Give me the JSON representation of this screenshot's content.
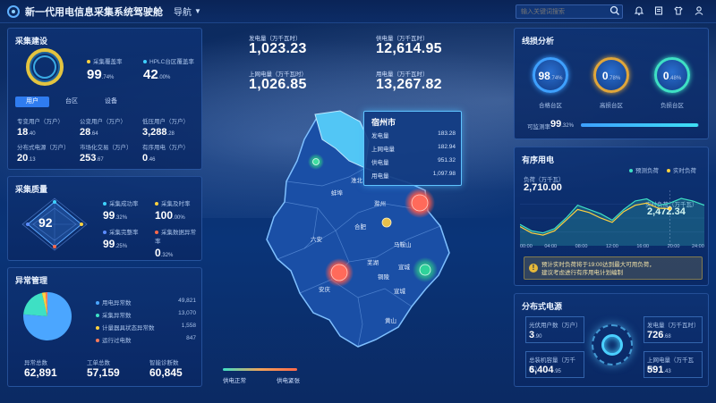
{
  "app": {
    "title": "新一代用电信息采集系统驾驶舱",
    "nav_label": "导航"
  },
  "search": {
    "placeholder": "输入关键词搜索"
  },
  "icons": [
    "search-icon",
    "bell-icon",
    "book-icon",
    "shirt-icon",
    "user-icon"
  ],
  "collection": {
    "title": "采集建设",
    "rate1_label": "采集覆盖率",
    "rate1_value": "99",
    "rate1_unit": ".74%",
    "rate2_label": "HPLC台区覆盖率",
    "rate2_value": "42",
    "rate2_unit": ".00%",
    "tabs": [
      "用户",
      "台区",
      "设备"
    ],
    "stats": [
      {
        "label": "专变用户（万户）",
        "value": "18",
        "unit": ".40"
      },
      {
        "label": "公变用户（万户）",
        "value": "28",
        "unit": ".64"
      },
      {
        "label": "低压用户（万户）",
        "value": "3,288",
        "unit": ".28"
      },
      {
        "label": "分布式电源（万户）",
        "value": "20",
        "unit": ".13"
      },
      {
        "label": "市场化交易（万户）",
        "value": "253",
        "unit": ".67"
      },
      {
        "label": "有序用电（万户）",
        "value": "0",
        "unit": ".46"
      }
    ]
  },
  "quality": {
    "title": "采集质量",
    "score": "92",
    "items": [
      {
        "label": "采集成功率",
        "value": "99",
        "unit": ".32%",
        "color": "#3fd2ff"
      },
      {
        "label": "采集及时率",
        "value": "100",
        "unit": ".00%",
        "color": "#ffd23f"
      },
      {
        "label": "采集完整率",
        "value": "99",
        "unit": ".25%",
        "color": "#5b8cff"
      },
      {
        "label": "采集数据异常率",
        "value": "0",
        "unit": ".32%",
        "color": "#ff6a4a"
      }
    ]
  },
  "anomaly": {
    "title": "异常管理",
    "legend": [
      {
        "label": "用电异常数",
        "value": "49,821",
        "color": "#4ba6ff"
      },
      {
        "label": "采集异常数",
        "value": "13,070",
        "color": "#3ee0c4"
      },
      {
        "label": "计量器具状态异常数",
        "value": "1,558",
        "color": "#ffd23f"
      },
      {
        "label": "运行过电数",
        "value": "847",
        "color": "#ff7a5a"
      }
    ],
    "pie_values": [
      49821,
      13070,
      1558,
      847
    ],
    "totals": [
      {
        "label": "异常总数",
        "value": "62,891"
      },
      {
        "label": "工单总数",
        "value": "57,159"
      },
      {
        "label": "智能诊断数",
        "value": "60,845"
      }
    ]
  },
  "center": {
    "metrics": [
      {
        "label": "发电量（万千瓦时）",
        "value": "1,023.23"
      },
      {
        "label": "供电量（万千瓦时）",
        "value": "12,614.95"
      },
      {
        "label": "上网电量（万千瓦时）",
        "value": "1,026.85"
      },
      {
        "label": "用电量（万千瓦时）",
        "value": "13,267.82"
      }
    ],
    "tooltip": {
      "city": "宿州市",
      "rows": [
        {
          "label": "发电量",
          "value": "183.28"
        },
        {
          "label": "上网电量",
          "value": "182.94"
        },
        {
          "label": "供电量",
          "value": "951.32"
        },
        {
          "label": "用电量",
          "value": "1,097.98"
        }
      ]
    },
    "cities": [
      "淮北",
      "蚌埠",
      "滁州",
      "合肥",
      "六安",
      "马鞍山",
      "芜湖",
      "宣城",
      "铜陵",
      "安庆",
      "黄山",
      "宿州"
    ],
    "legend_left": "供电正常",
    "legend_right": "供电紧张"
  },
  "line_loss": {
    "title": "线损分析",
    "gauges": [
      {
        "label": "合格台区",
        "value": "98",
        "unit": ".74%",
        "color": "#3ea0ff"
      },
      {
        "label": "高损台区",
        "value": "0",
        "unit": ".78%",
        "color": "#e0a63a"
      },
      {
        "label": "负损台区",
        "value": "0",
        "unit": ".48%",
        "color": "#3ee0c4"
      }
    ],
    "calc_label": "可监测率",
    "calc_value": "99",
    "calc_unit": ".32%",
    "calc_fraction": 0.9932
  },
  "ordered": {
    "title": "有序用电",
    "legend": [
      {
        "label": "预测负荷",
        "color": "#3ee0c4"
      },
      {
        "label": "实时负荷",
        "color": "#ffd23f"
      }
    ],
    "load_label": "负荷（万千瓦）",
    "load_value": "2,710.00",
    "real_label": "实时负荷（万千瓦）",
    "real_value": "2,472.34",
    "x_ticks": [
      "00:00",
      "04:00",
      "08:00",
      "12:00",
      "16:00",
      "20:00",
      "24:00"
    ],
    "predicted": [
      2100,
      1950,
      1900,
      2000,
      2250,
      2550,
      2450,
      2350,
      2200,
      2450,
      2650,
      2700,
      2550,
      2600,
      2710,
      2650,
      2550
    ],
    "realtime": [
      2050,
      1900,
      1850,
      1950,
      2200,
      2450,
      2380,
      2250,
      2150,
      2400,
      2550,
      2600,
      2480,
      2472
    ],
    "ylim": [
      1600,
      2900
    ],
    "alert": "预计实时负荷将于19:00达到最大可用负荷，建议考虑进行有序用电计划编制"
  },
  "distributed": {
    "title": "分布式电源",
    "items": [
      {
        "label": "光伏用户数（万户）",
        "value": "3",
        "unit": ".90"
      },
      {
        "label": "发电量（万千瓦时）",
        "value": "726",
        "unit": ".68"
      },
      {
        "label": "总装机容量（万千瓦）",
        "value": "6,404",
        "unit": ".95"
      },
      {
        "label": "上网电量（万千瓦时）",
        "value": "591",
        "unit": ".43"
      }
    ]
  }
}
